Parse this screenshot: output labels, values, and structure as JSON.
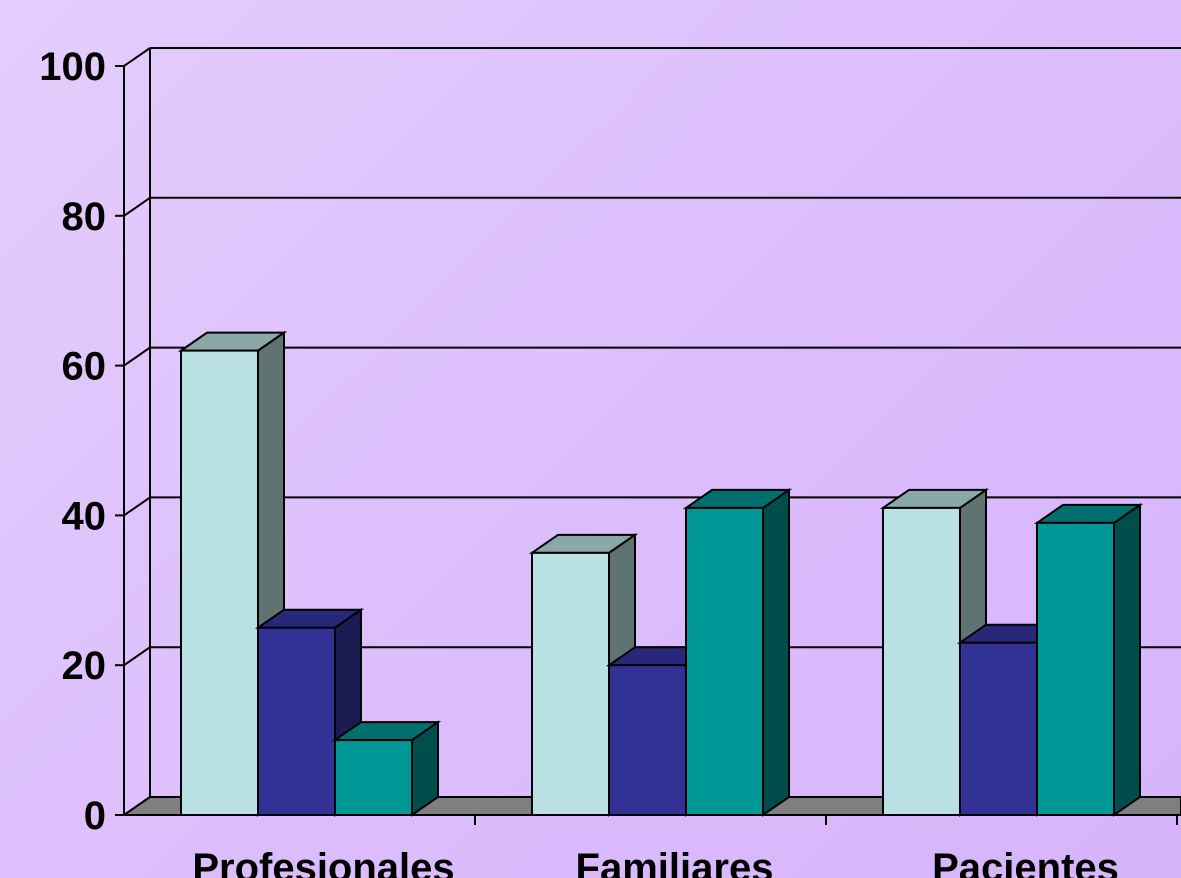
{
  "chart_data": {
    "type": "bar",
    "title": "",
    "xlabel": "",
    "ylabel": "",
    "ylim": [
      0,
      100
    ],
    "yticks": [
      "0",
      "20",
      "40",
      "60",
      "80",
      "100"
    ],
    "grid": true,
    "categories": [
      "Profesionales",
      "Familiares",
      "Pacientes"
    ],
    "series": [
      {
        "values": [
          62,
          35,
          41
        ],
        "color": "#b9e1e3",
        "side": "#5f7472",
        "top": "#8aa8a8"
      },
      {
        "values": [
          25,
          20,
          23
        ],
        "color": "#323296",
        "side": "#1c1c55",
        "top": "#28287a"
      },
      {
        "values": [
          10,
          41,
          39
        ],
        "color": "#009896",
        "side": "#004e4c",
        "top": "#00706e"
      }
    ]
  }
}
